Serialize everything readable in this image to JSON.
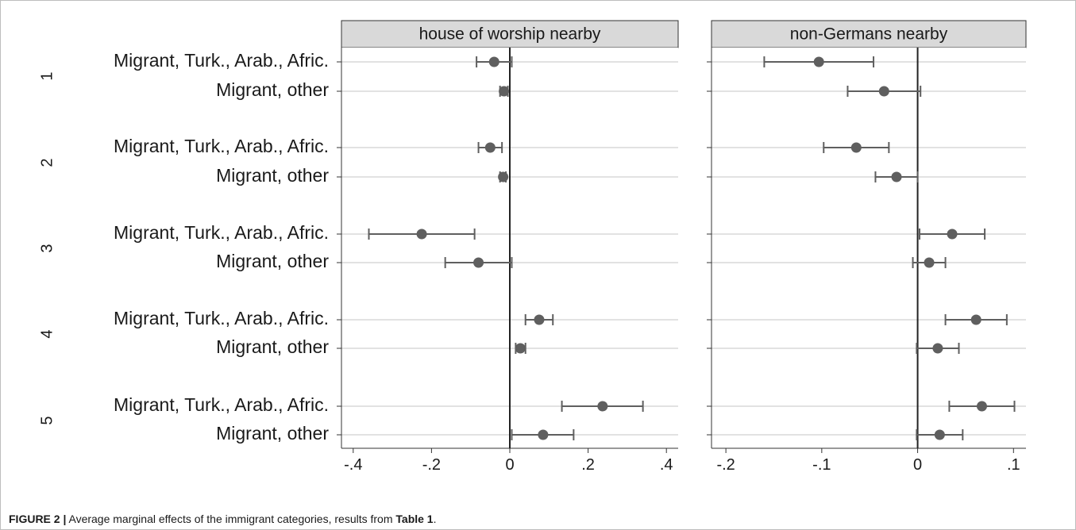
{
  "chart_data": [
    {
      "type": "errorbar",
      "panel_title": "house of worship nearby",
      "xlim": [
        -0.43,
        0.43
      ],
      "xticks": [
        "-.4",
        "-.2",
        "0",
        ".2",
        ".4"
      ],
      "xtick_values": [
        -0.4,
        -0.2,
        0,
        0.2,
        0.4
      ],
      "reference_line": 0,
      "grid": true,
      "points": [
        {
          "group": "1",
          "label": "Migrant, Turk., Arab., Afric.",
          "estimate": -0.04,
          "low": -0.085,
          "high": 0.005
        },
        {
          "group": "1",
          "label": "Migrant, other",
          "estimate": -0.015,
          "low": -0.025,
          "high": -0.005
        },
        {
          "group": "2",
          "label": "Migrant, Turk., Arab., Afric.",
          "estimate": -0.05,
          "low": -0.08,
          "high": -0.02
        },
        {
          "group": "2",
          "label": "Migrant, other",
          "estimate": -0.017,
          "low": -0.025,
          "high": -0.01
        },
        {
          "group": "3",
          "label": "Migrant, Turk., Arab., Afric.",
          "estimate": -0.225,
          "low": -0.36,
          "high": -0.09
        },
        {
          "group": "3",
          "label": "Migrant, other",
          "estimate": -0.08,
          "low": -0.165,
          "high": 0.005
        },
        {
          "group": "4",
          "label": "Migrant, Turk., Arab., Afric.",
          "estimate": 0.075,
          "low": 0.04,
          "high": 0.11
        },
        {
          "group": "4",
          "label": "Migrant, other",
          "estimate": 0.027,
          "low": 0.015,
          "high": 0.04
        },
        {
          "group": "5",
          "label": "Migrant, Turk., Arab., Afric.",
          "estimate": 0.237,
          "low": 0.133,
          "high": 0.34
        },
        {
          "group": "5",
          "label": "Migrant, other",
          "estimate": 0.085,
          "low": 0.005,
          "high": 0.163
        }
      ]
    },
    {
      "type": "errorbar",
      "panel_title": "non-Germans nearby",
      "xlim": [
        -0.215,
        0.113
      ],
      "xticks": [
        "-.2",
        "-.1",
        "0",
        ".1"
      ],
      "xtick_values": [
        -0.2,
        -0.1,
        0,
        0.1
      ],
      "reference_line": 0,
      "grid": true,
      "points": [
        {
          "group": "1",
          "label": "Migrant, Turk., Arab., Afric.",
          "estimate": -0.103,
          "low": -0.16,
          "high": -0.046
        },
        {
          "group": "1",
          "label": "Migrant, other",
          "estimate": -0.035,
          "low": -0.073,
          "high": 0.003
        },
        {
          "group": "2",
          "label": "Migrant, Turk., Arab., Afric.",
          "estimate": -0.064,
          "low": -0.098,
          "high": -0.03
        },
        {
          "group": "2",
          "label": "Migrant, other",
          "estimate": -0.022,
          "low": -0.044,
          "high": 0.0
        },
        {
          "group": "3",
          "label": "Migrant, Turk., Arab., Afric.",
          "estimate": 0.036,
          "low": 0.002,
          "high": 0.07
        },
        {
          "group": "3",
          "label": "Migrant, other",
          "estimate": 0.012,
          "low": -0.005,
          "high": 0.029
        },
        {
          "group": "4",
          "label": "Migrant, Turk., Arab., Afric.",
          "estimate": 0.061,
          "low": 0.029,
          "high": 0.093
        },
        {
          "group": "4",
          "label": "Migrant, other",
          "estimate": 0.021,
          "low": -0.001,
          "high": 0.043
        },
        {
          "group": "5",
          "label": "Migrant, Turk., Arab., Afric.",
          "estimate": 0.067,
          "low": 0.033,
          "high": 0.101
        },
        {
          "group": "5",
          "label": "Migrant, other",
          "estimate": 0.023,
          "low": -0.001,
          "high": 0.047
        }
      ]
    }
  ],
  "groups": [
    "1",
    "2",
    "3",
    "4",
    "5"
  ],
  "row_labels": [
    "Migrant, Turk., Arab., Afric.",
    "Migrant, other"
  ],
  "caption": {
    "prefix": "FIGURE 2 |",
    "text": " Average marginal effects of the immigrant categories, results from ",
    "ref": "Table 1",
    "suffix": "."
  },
  "colors": {
    "marker": "#5f5f5f",
    "errorbar": "#5f5f5f",
    "gridline": "#e2e2e2",
    "header_fill": "#d9d9d9",
    "axis": "#333333"
  }
}
